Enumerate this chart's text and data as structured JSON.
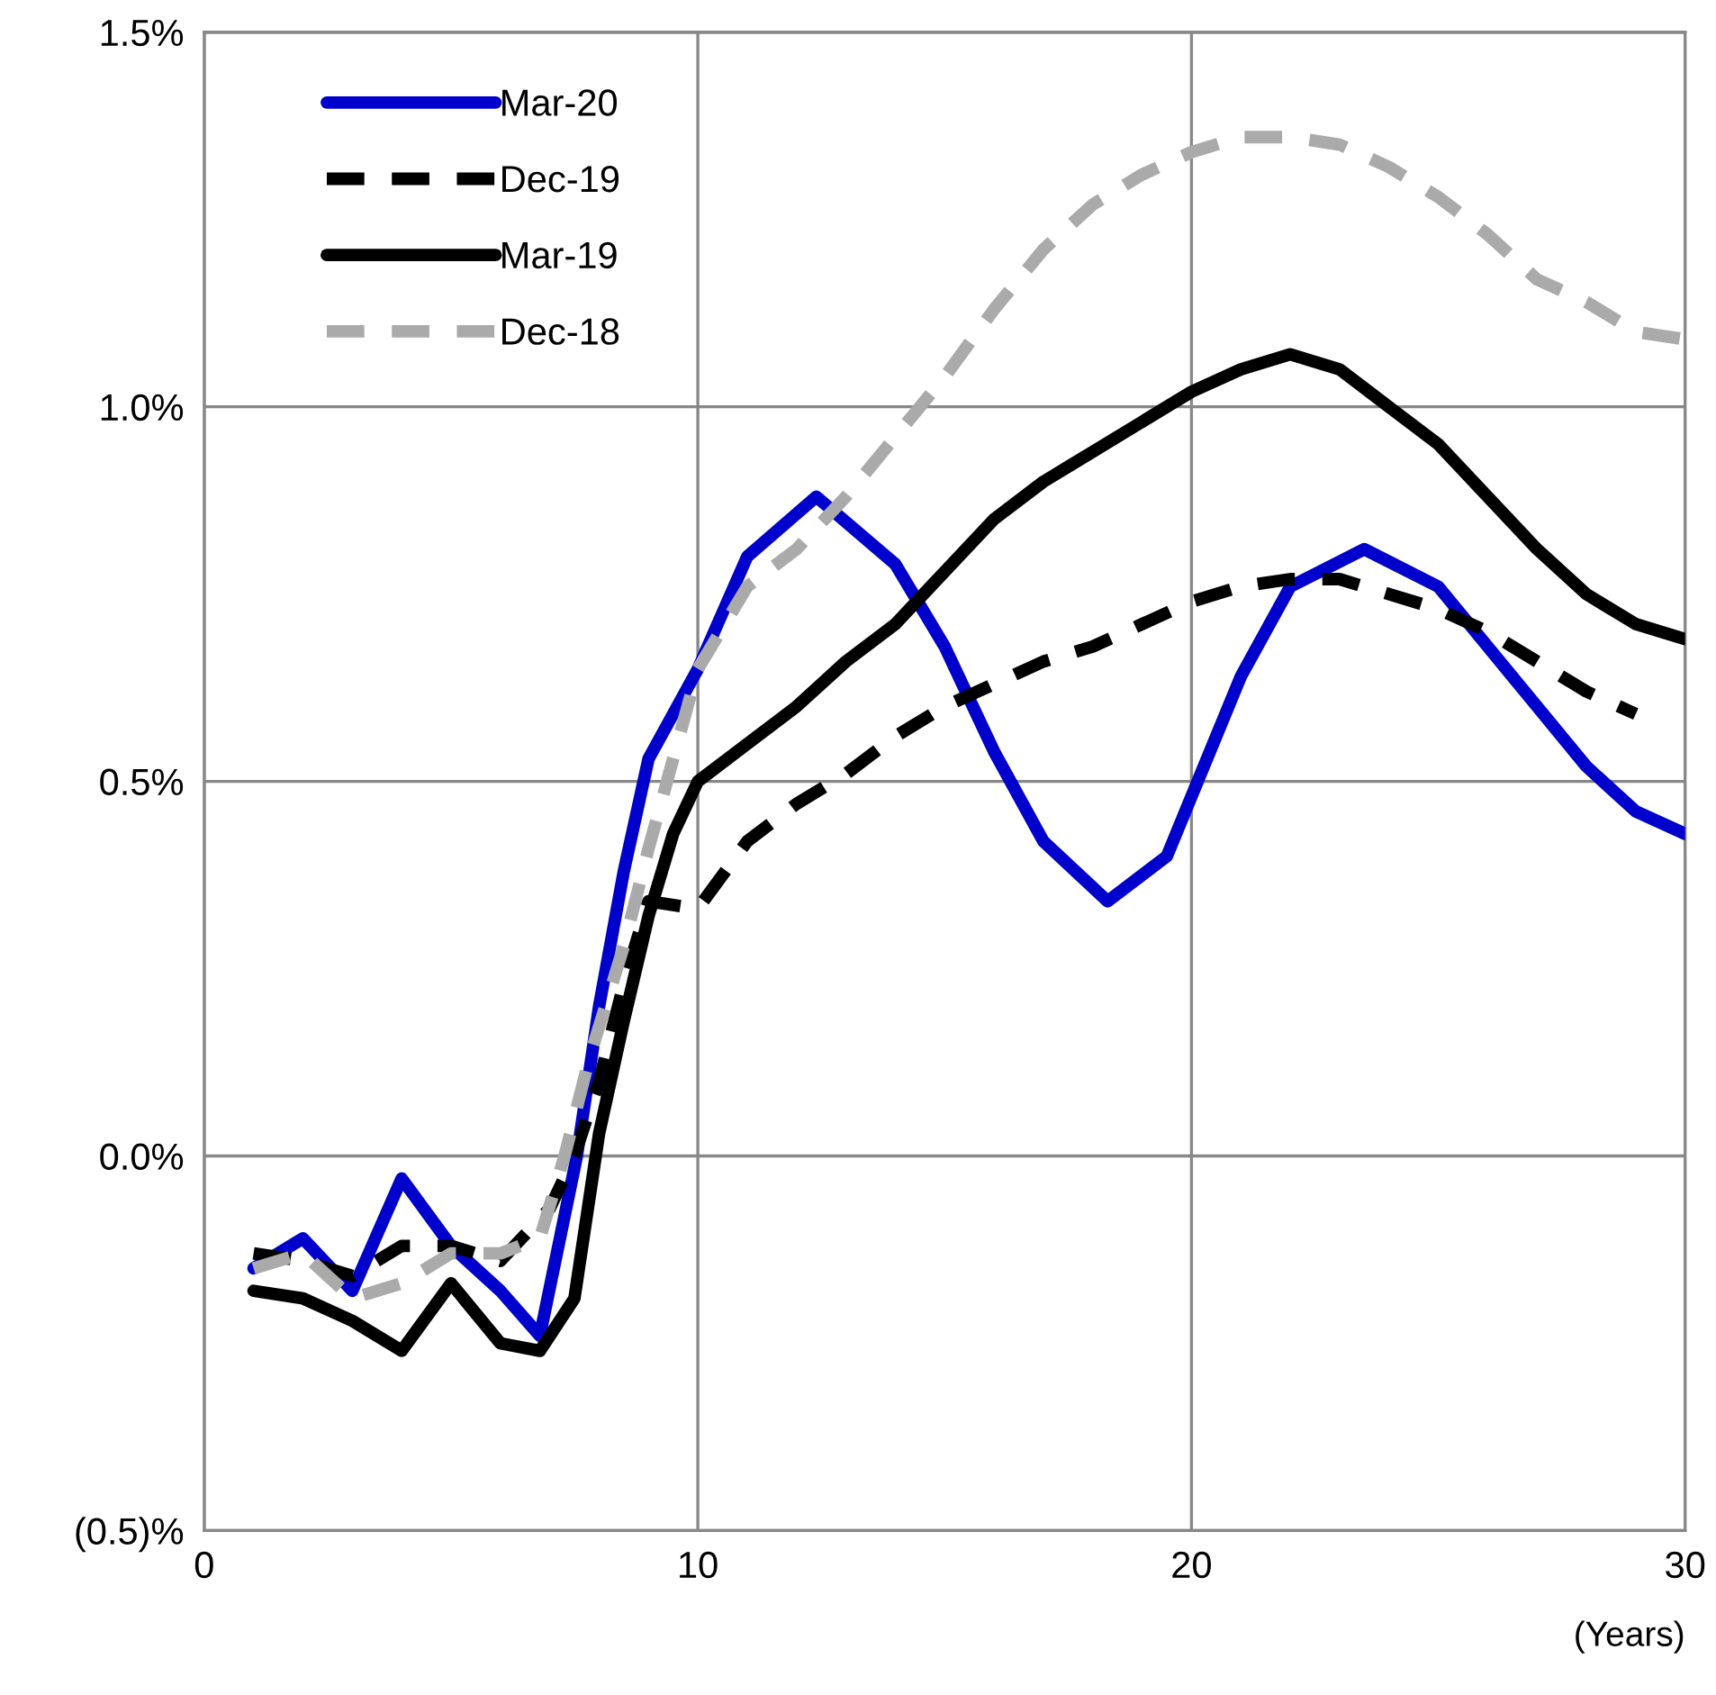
{
  "chart_data": {
    "type": "line",
    "xlabel": "(Years)",
    "xlim": [
      0,
      30
    ],
    "xticks": [
      0,
      10,
      20,
      30
    ],
    "ylim": [
      -0.5,
      1.5
    ],
    "yticks": [
      {
        "value": -0.5,
        "label": "(0.5)%"
      },
      {
        "value": 0.0,
        "label": "0.0%"
      },
      {
        "value": 0.5,
        "label": "0.5%"
      },
      {
        "value": 1.0,
        "label": "1.0%"
      },
      {
        "value": 1.5,
        "label": "1.5%"
      }
    ],
    "grid": true,
    "legend": "top left",
    "marker": "none",
    "series": [
      {
        "name": "Mar-20",
        "color": "#0000cc",
        "line_style": "solid",
        "x": [
          1,
          2,
          3,
          4,
          5,
          6,
          6.8,
          7.55,
          8,
          8.5,
          9,
          10,
          11,
          12.4,
          14,
          15,
          16,
          17,
          18.3,
          19.5,
          20,
          21,
          22,
          23.5,
          25,
          26,
          27,
          28,
          29,
          30
        ],
        "values": [
          -0.15,
          -0.11,
          -0.18,
          -0.03,
          -0.12,
          -0.18,
          -0.24,
          0.0,
          0.2,
          0.38,
          0.53,
          0.65,
          0.8,
          0.88,
          0.79,
          0.68,
          0.54,
          0.42,
          0.34,
          0.4,
          0.48,
          0.64,
          0.76,
          0.81,
          0.76,
          0.68,
          0.6,
          0.52,
          0.46,
          0.43
        ]
      },
      {
        "name": "Dec-19",
        "color": "#000000",
        "line_style": "dashed",
        "x": [
          1,
          2,
          3,
          4,
          5,
          6,
          7,
          7.5,
          8,
          8.5,
          9,
          10,
          11,
          12,
          13,
          14,
          15,
          16,
          17,
          18,
          19,
          20,
          21,
          22,
          23,
          24,
          25,
          26,
          27,
          28,
          29
        ],
        "values": [
          -0.13,
          -0.14,
          -0.16,
          -0.12,
          -0.12,
          -0.14,
          -0.07,
          0.0,
          0.1,
          0.23,
          0.34,
          0.33,
          0.42,
          0.47,
          0.51,
          0.56,
          0.6,
          0.63,
          0.66,
          0.68,
          0.71,
          0.74,
          0.76,
          0.77,
          0.77,
          0.75,
          0.73,
          0.7,
          0.66,
          0.62,
          0.59
        ]
      },
      {
        "name": "Mar-19",
        "color": "#000000",
        "line_style": "solid",
        "x": [
          1,
          2,
          3,
          4,
          5,
          6,
          6.8,
          7.5,
          8,
          8.5,
          9,
          9.5,
          10,
          11,
          12,
          13,
          14,
          15,
          16,
          17,
          18,
          19,
          20,
          21,
          22,
          23,
          24,
          25,
          26,
          27,
          28,
          29,
          30
        ],
        "values": [
          -0.18,
          -0.19,
          -0.22,
          -0.26,
          -0.17,
          -0.25,
          -0.26,
          -0.19,
          0.03,
          0.18,
          0.32,
          0.43,
          0.5,
          0.55,
          0.6,
          0.66,
          0.71,
          0.78,
          0.85,
          0.9,
          0.94,
          0.98,
          1.02,
          1.05,
          1.07,
          1.05,
          1.0,
          0.95,
          0.88,
          0.81,
          0.75,
          0.71,
          0.69
        ]
      },
      {
        "name": "Dec-18",
        "color": "#aaaaaa",
        "line_style": "dashed",
        "x": [
          1,
          2,
          3,
          4,
          5,
          6,
          6.8,
          7.3,
          7.8,
          8.5,
          9,
          9.5,
          10,
          11,
          12,
          13,
          14,
          15,
          16,
          17,
          18,
          19,
          20,
          21,
          22,
          23,
          24,
          25,
          26,
          27,
          28,
          29,
          30
        ],
        "values": [
          -0.15,
          -0.13,
          -0.19,
          -0.17,
          -0.13,
          -0.13,
          -0.11,
          0.0,
          0.13,
          0.28,
          0.41,
          0.53,
          0.65,
          0.76,
          0.81,
          0.88,
          0.96,
          1.04,
          1.13,
          1.21,
          1.27,
          1.31,
          1.34,
          1.36,
          1.36,
          1.35,
          1.32,
          1.28,
          1.23,
          1.17,
          1.14,
          1.1,
          1.09
        ]
      }
    ]
  }
}
